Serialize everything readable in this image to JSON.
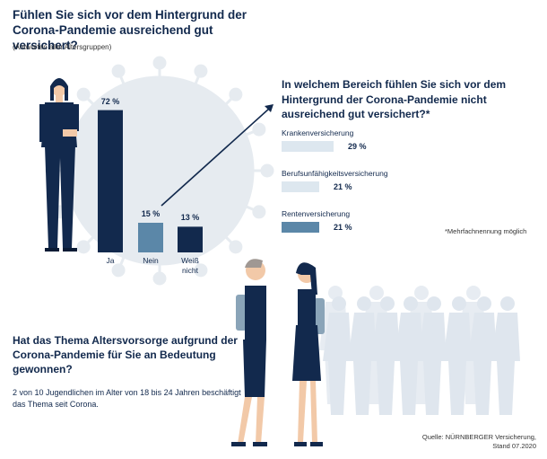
{
  "title": "Fühlen Sie sich vor dem Hintergrund der Corona-Pandemie ausreichend gut versichert?",
  "subtitle": "(Antworten aller Altersgruppen)",
  "chart_data": [
    {
      "type": "bar",
      "categories": [
        "Ja",
        "Nein",
        "Weiß nicht"
      ],
      "values": [
        72,
        15,
        13
      ],
      "value_labels": [
        "72 %",
        "15 %",
        "13 %"
      ],
      "colors": [
        "#12294d",
        "#5b87a8",
        "#12294d"
      ]
    },
    {
      "type": "bar",
      "orientation": "horizontal",
      "title": "In welchem Bereich fühlen Sie sich vor dem Hintergrund der Corona-Pandemie nicht ausreichend gut versichert?*",
      "categories": [
        "Krankenversicherung",
        "Berufsunfähigkeitsversicherung",
        "Rentenversicherung"
      ],
      "values": [
        29,
        21,
        21
      ],
      "value_labels": [
        "29 %",
        "21 %",
        "21 %"
      ],
      "colors": [
        "#dde7ef",
        "#dde7ef",
        "#5b87a8"
      ]
    }
  ],
  "footnote": "*Mehrfachnennung möglich",
  "question3": "Hat das Thema Altersvorsorge aufgrund der Corona-Pandemie für Sie an Bedeutung gewonnen?",
  "question3_body": "2 von 10 Jugendlichen im Alter von 18 bis 24 Jahren beschäftigt das Thema seit Corona.",
  "source_line1": "Quelle: NÜRNBERGER Versicherung,",
  "source_line2": "Stand 07.2020",
  "colors": {
    "navy": "#12294d",
    "steel": "#5b87a8",
    "light": "#dde7ef",
    "virus": "#e6ebf0"
  }
}
